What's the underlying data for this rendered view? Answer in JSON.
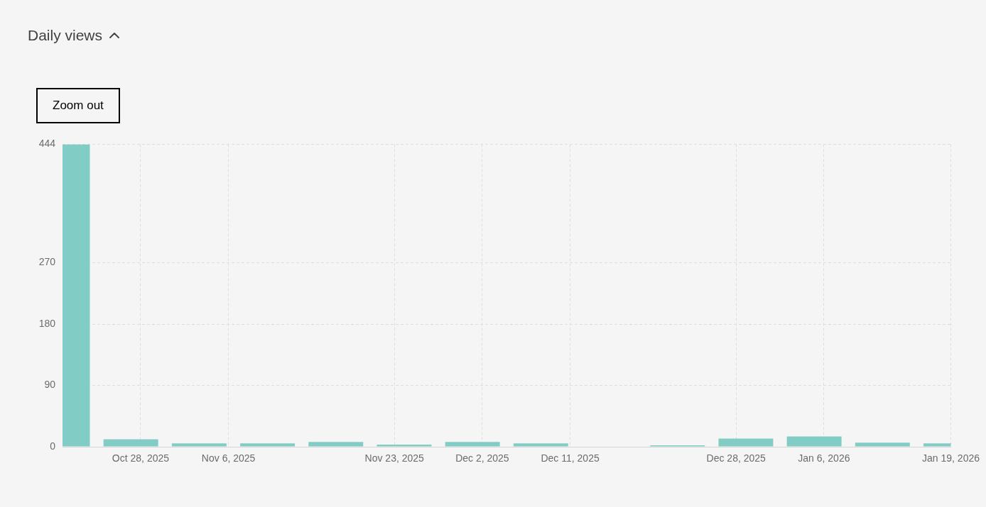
{
  "chart_data": {
    "type": "bar",
    "title": "Daily views",
    "annotations": [
      "Zoom out"
    ],
    "x": [
      "2025-10-20",
      "2025-10-27",
      "2025-11-03",
      "2025-11-10",
      "2025-11-17",
      "2025-11-24",
      "2025-12-01",
      "2025-12-08",
      "2025-12-15",
      "2025-12-22",
      "2025-12-29",
      "2026-01-05",
      "2026-01-12",
      "2026-01-19"
    ],
    "values": [
      444,
      11,
      5,
      5,
      7,
      3,
      7,
      5,
      0,
      2,
      12,
      15,
      6,
      5
    ],
    "color": "#81cdc6",
    "xlim": [
      "2025-10-20",
      "2026-01-19"
    ],
    "xticks": [
      {
        "value": "2025-10-28",
        "label": "Oct 28, 2025"
      },
      {
        "value": "2025-11-06",
        "label": "Nov 6, 2025"
      },
      {
        "value": "2025-11-23",
        "label": "Nov 23, 2025"
      },
      {
        "value": "2025-12-02",
        "label": "Dec 2, 2025"
      },
      {
        "value": "2025-12-11",
        "label": "Dec 11, 2025"
      },
      {
        "value": "2025-12-28",
        "label": "Dec 28, 2025"
      },
      {
        "value": "2026-01-06",
        "label": "Jan 6, 2026"
      },
      {
        "value": "2026-01-19",
        "label": "Jan 19, 2026"
      }
    ],
    "ylim": [
      0,
      444
    ],
    "yticks": [
      0,
      90,
      180,
      270,
      444
    ],
    "grid": true
  }
}
